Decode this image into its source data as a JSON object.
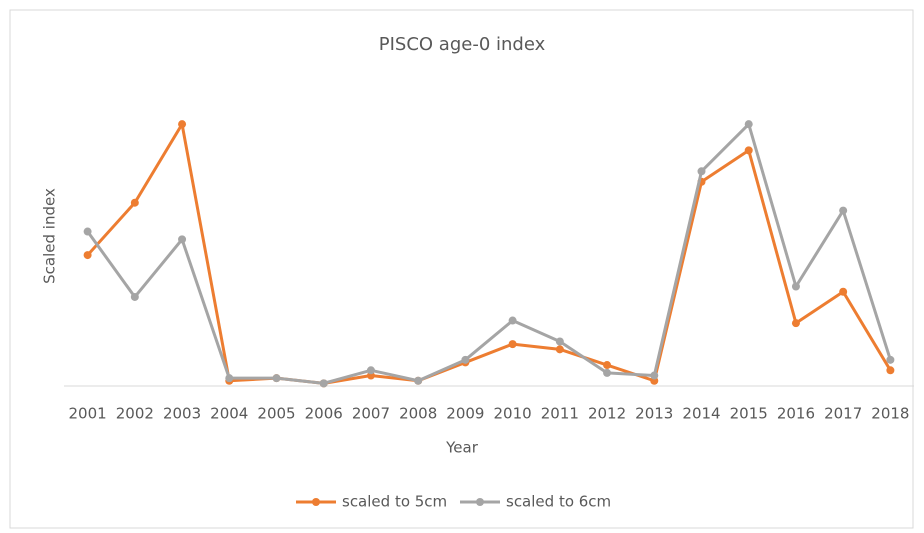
{
  "chart_data": {
    "type": "line",
    "title": "PISCO age-0 index",
    "xlabel": "Year",
    "ylabel": "Scaled index",
    "categories": [
      "2001",
      "2002",
      "2003",
      "2004",
      "2005",
      "2006",
      "2007",
      "2008",
      "2009",
      "2010",
      "2011",
      "2012",
      "2013",
      "2014",
      "2015",
      "2016",
      "2017",
      "2018"
    ],
    "series": [
      {
        "name": "scaled to 5cm",
        "color": "#ed7d31",
        "values": [
          0.5,
          0.7,
          1.0,
          0.02,
          0.03,
          0.01,
          0.04,
          0.02,
          0.09,
          0.16,
          0.14,
          0.08,
          0.02,
          0.78,
          0.9,
          0.24,
          0.36,
          0.06
        ]
      },
      {
        "name": "scaled to 6cm",
        "color": "#a5a5a5",
        "values": [
          0.59,
          0.34,
          0.56,
          0.03,
          0.03,
          0.01,
          0.06,
          0.02,
          0.1,
          0.25,
          0.17,
          0.05,
          0.04,
          0.82,
          1.0,
          0.38,
          0.67,
          0.1
        ]
      }
    ],
    "ylim": [
      0,
      1.1
    ],
    "grid": false
  }
}
